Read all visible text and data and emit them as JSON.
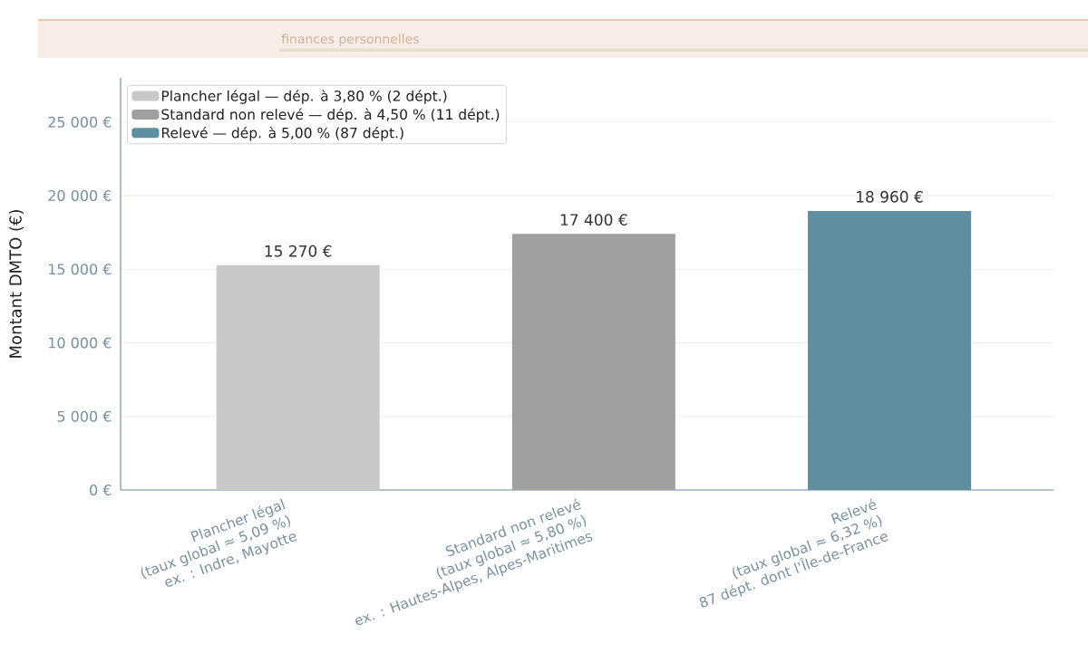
{
  "chart_data": {
    "type": "bar",
    "annotations": [
      "finances personnelles"
    ],
    "ylabel": "Montant DMTO (€)",
    "categories": [
      "Plancher légal\n(taux global ≈ 5,09 %)\nex. : Indre, Mayotte",
      "Standard non relevé\n(taux global ≈ 5,80 %)\nex. : Hautes-Alpes, Alpes-Maritimes",
      "Relevé\n(taux global ≈ 6,32 %)\n87 dépt. dont l'Île-de-France"
    ],
    "series": [
      {
        "name": "Plancher légal — dép. à 3,80 % (2 dépt.)",
        "color": "#c8c8c8",
        "values": [
          15270,
          null,
          null
        ],
        "value_labels": [
          "15 270 €",
          null,
          null
        ]
      },
      {
        "name": "Standard non relevé — dép. à 4,50 % (11 dépt.)",
        "color": "#a0a0a0",
        "values": [
          null,
          17400,
          null
        ],
        "value_labels": [
          null,
          "17 400 €",
          null
        ]
      },
      {
        "name": "Relevé — dép. à 5,00 % (87 dépt.)",
        "color": "#5e8fa0",
        "values": [
          null,
          null,
          18960
        ],
        "value_labels": [
          null,
          null,
          "18 960 €"
        ]
      }
    ],
    "ylim": [
      0,
      28000
    ],
    "yticks": [
      {
        "value": 0,
        "label": "0 €"
      },
      {
        "value": 5000,
        "label": "5 000 €"
      },
      {
        "value": 10000,
        "label": "10 000 €"
      },
      {
        "value": 15000,
        "label": "15 000 €"
      },
      {
        "value": 20000,
        "label": "20 000 €"
      },
      {
        "value": 25000,
        "label": "25 000 €"
      }
    ],
    "grid": "y",
    "legend": "top left"
  }
}
